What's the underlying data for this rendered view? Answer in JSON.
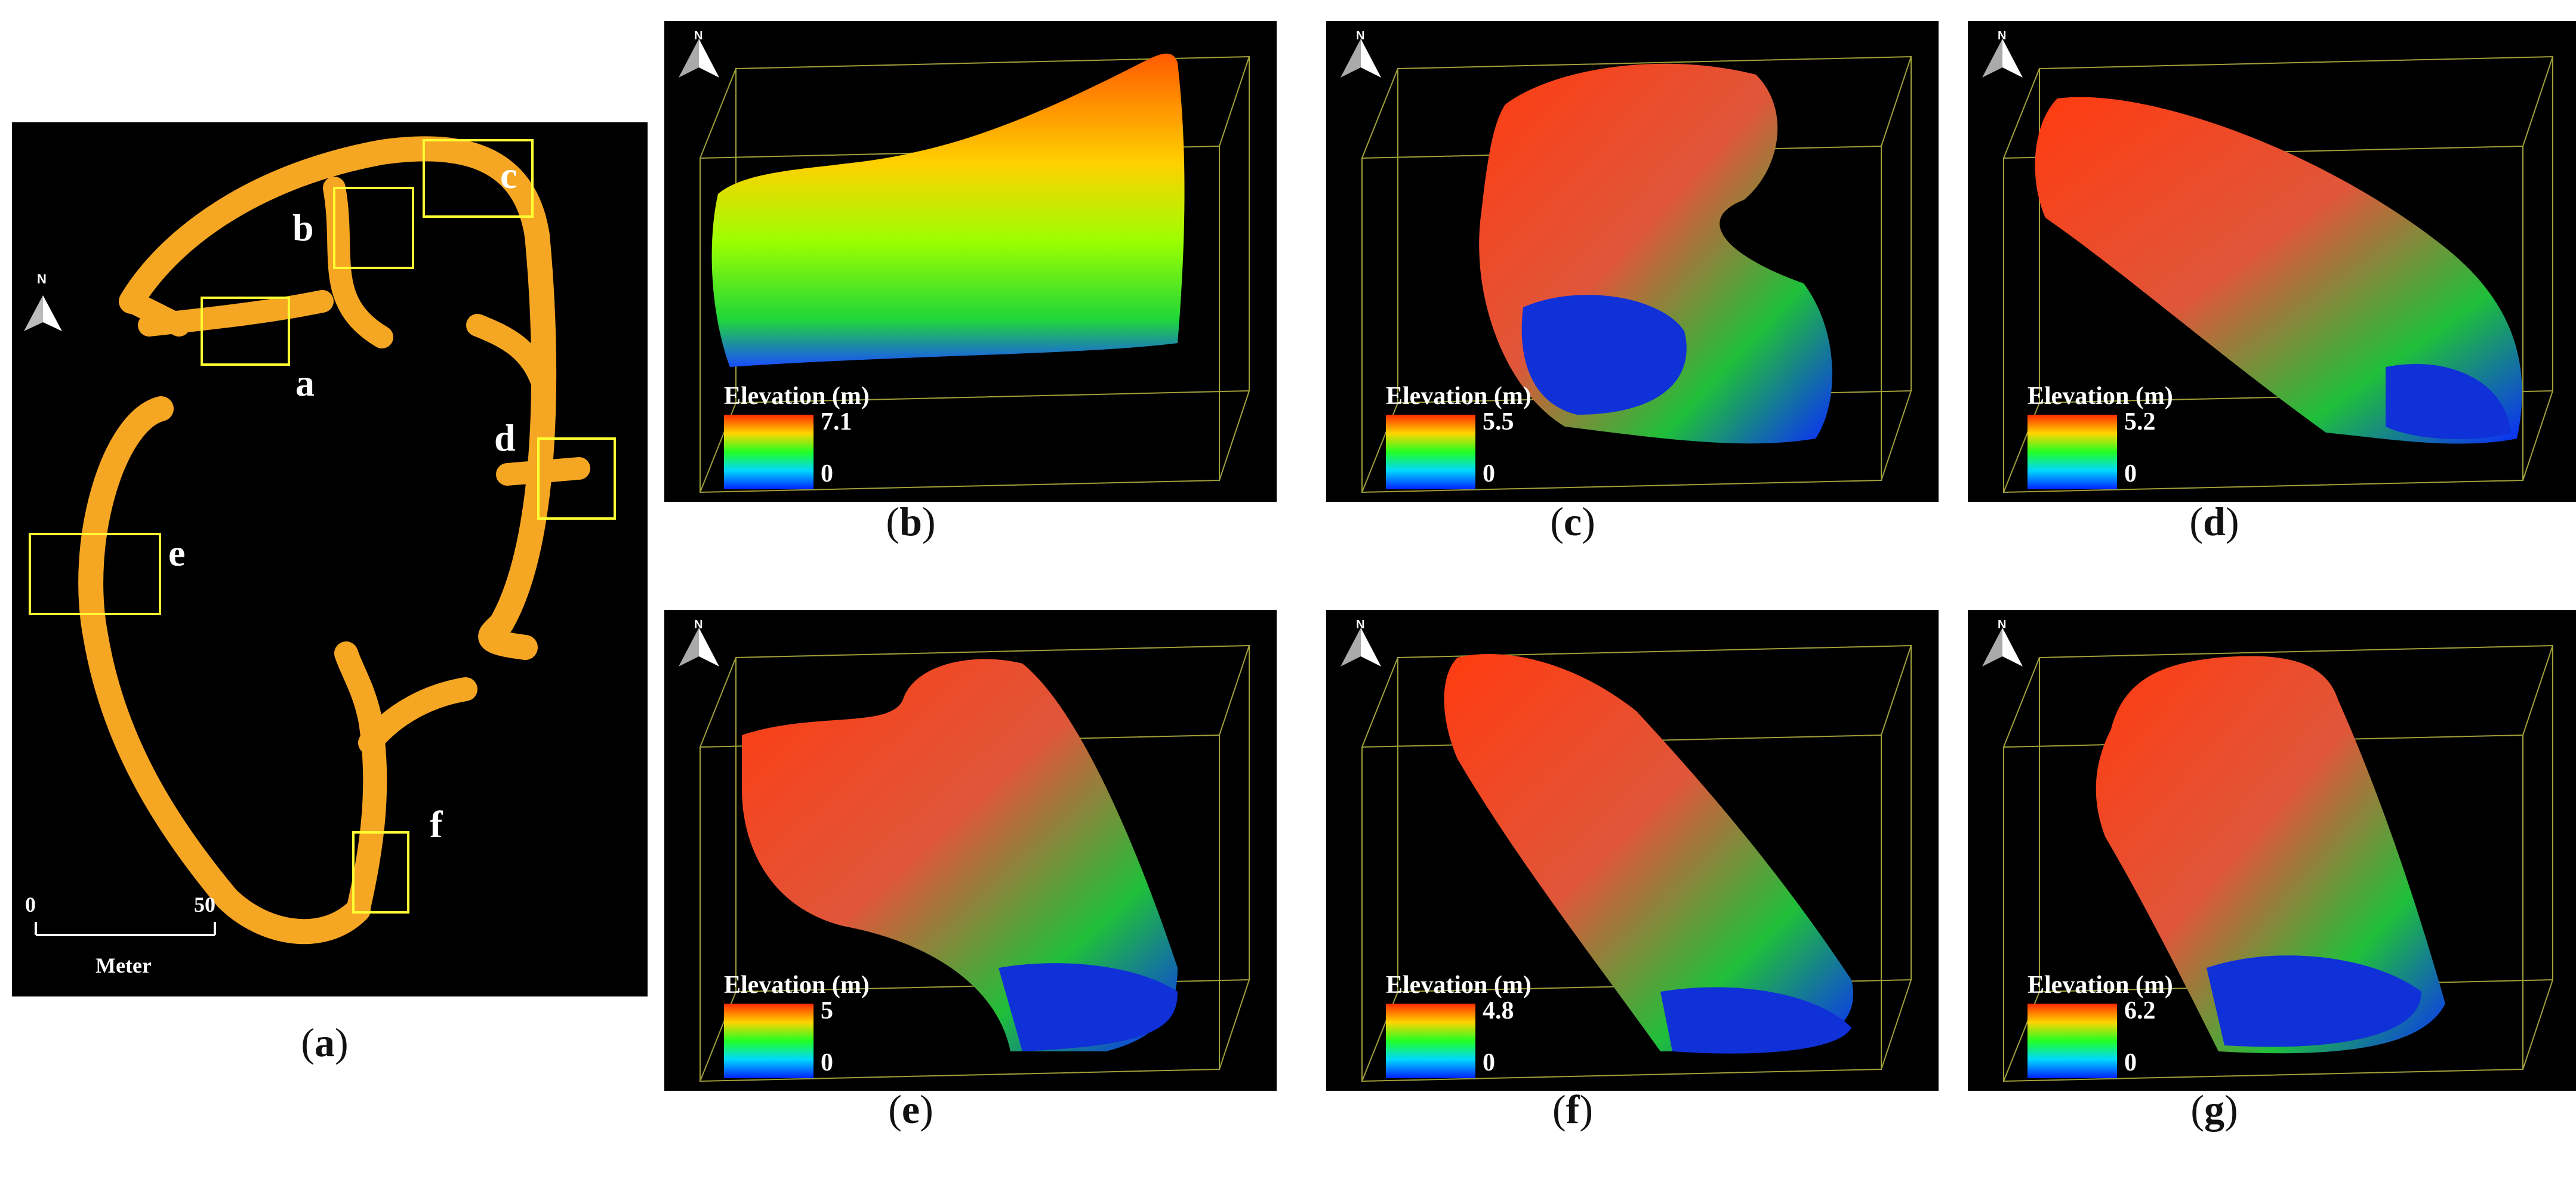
{
  "figure": {
    "panel_a": {
      "caption_letter": "a",
      "north_label": "N",
      "scale_start": "0",
      "scale_end": "50",
      "scale_unit": "Meter",
      "box_labels": [
        "a",
        "b",
        "c",
        "d",
        "e",
        "f"
      ],
      "tunnel_color": "#f5a623",
      "box_color": "#ffff33"
    },
    "views": [
      {
        "caption_letter": "b",
        "legend_title": "Elevation (m)",
        "max": "7.1",
        "min": "0"
      },
      {
        "caption_letter": "c",
        "legend_title": "Elevation (m)",
        "max": "5.5",
        "min": "0"
      },
      {
        "caption_letter": "d",
        "legend_title": "Elevation (m)",
        "max": "5.2",
        "min": "0"
      },
      {
        "caption_letter": "e",
        "legend_title": "Elevation (m)",
        "max": "5",
        "min": "0"
      },
      {
        "caption_letter": "f",
        "legend_title": "Elevation (m)",
        "max": "4.8",
        "min": "0"
      },
      {
        "caption_letter": "g",
        "legend_title": "Elevation (m)",
        "max": "6.2",
        "min": "0"
      }
    ],
    "north_label": "N"
  }
}
